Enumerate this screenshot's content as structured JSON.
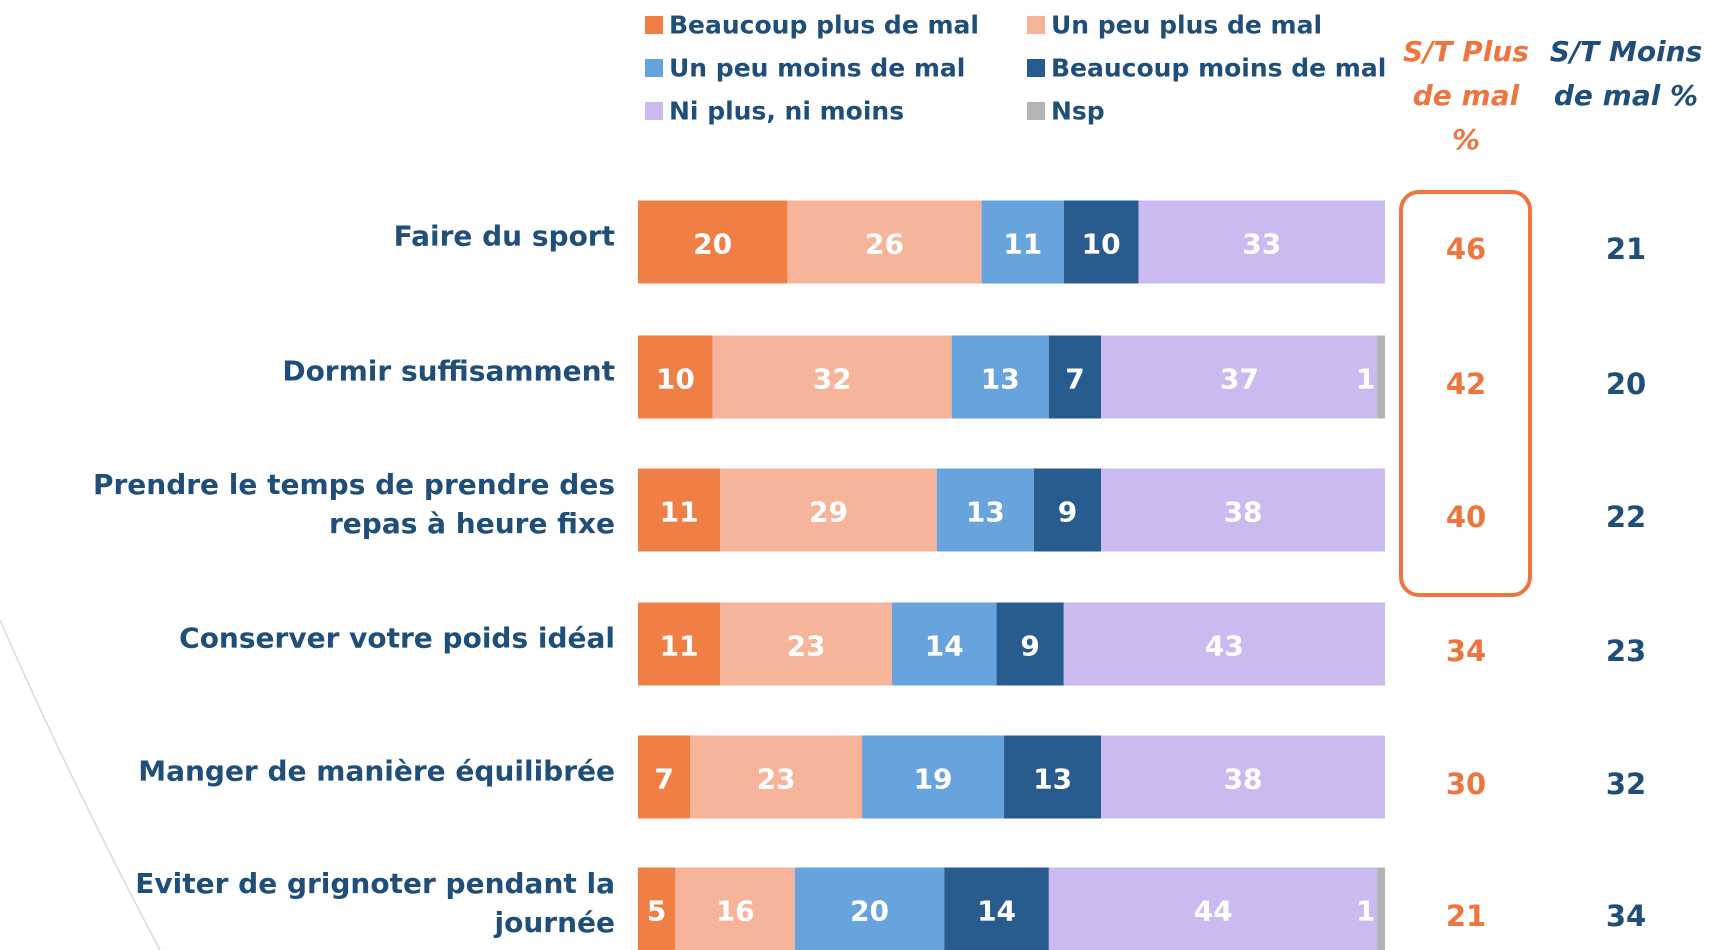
{
  "chart_data": {
    "type": "stacked_bar_horizontal",
    "categories": [
      "Faire du sport",
      "Dormir suffisamment",
      "Prendre le temps de prendre des repas à heure fixe",
      "Conserver votre poids idéal",
      "Manger de manière équilibrée",
      "Eviter de grignoter pendant la journée"
    ],
    "xlim": [
      0,
      100
    ],
    "series": [
      {
        "name": "Beaucoup plus de mal",
        "color": "#f07f45",
        "values": [
          20,
          10,
          11,
          11,
          7,
          5
        ]
      },
      {
        "name": "Un peu plus de mal",
        "color": "#f6b49a",
        "values": [
          26,
          32,
          29,
          23,
          23,
          16
        ]
      },
      {
        "name": "Un peu moins de mal",
        "color": "#67a3dd",
        "values": [
          11,
          13,
          13,
          14,
          19,
          20
        ]
      },
      {
        "name": "Beaucoup moins de mal",
        "color": "#285b8e",
        "values": [
          10,
          7,
          9,
          9,
          13,
          14
        ]
      },
      {
        "name": "Ni plus, ni moins",
        "color": "#cbbaf0",
        "values": [
          33,
          37,
          38,
          43,
          38,
          44
        ]
      },
      {
        "name": "Nsp",
        "color": "#b3b3b3",
        "values": [
          null,
          1,
          null,
          null,
          null,
          1
        ]
      }
    ],
    "summary_columns": [
      {
        "header": "S/T Plus de mal %",
        "color": "#ee7540",
        "values": [
          46,
          42,
          40,
          34,
          30,
          21
        ]
      },
      {
        "header": "S/T Moins de mal %",
        "color": "#1f4e79",
        "values": [
          21,
          20,
          22,
          23,
          32,
          34
        ]
      }
    ]
  }
}
